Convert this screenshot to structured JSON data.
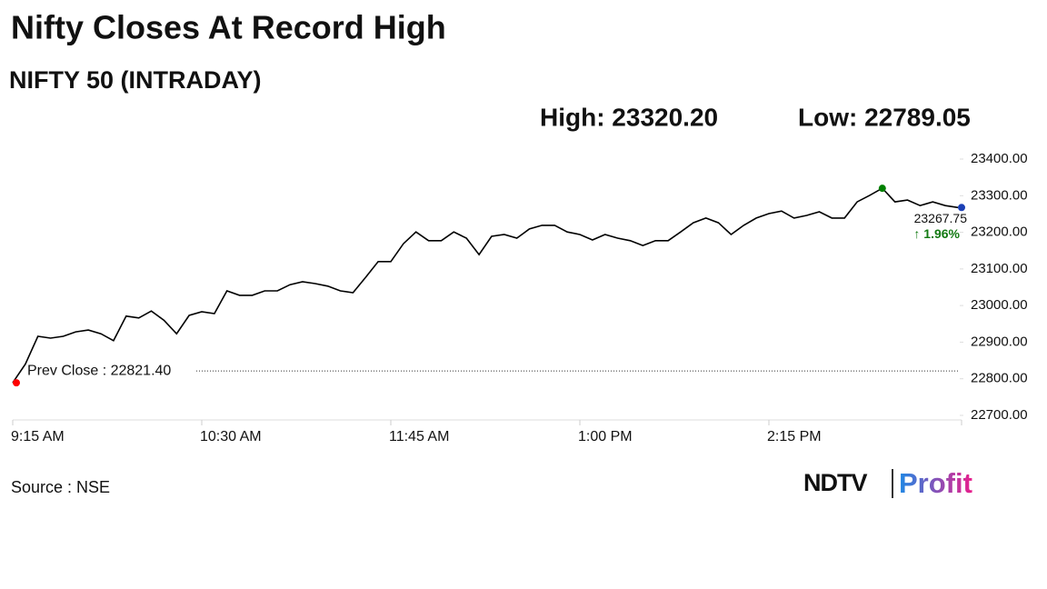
{
  "chart_data": {
    "type": "line",
    "title": "Nifty Closes At Record High",
    "subtitle": "NIFTY 50 (INTRADAY)",
    "high": {
      "value": 23320.2,
      "label": "High: 23320.20"
    },
    "low": {
      "value": 22789.05,
      "label": "Low: 22789.05"
    },
    "prev_close": {
      "value": 22821.4,
      "label": "Prev Close : 22821.40"
    },
    "last": {
      "value": 23267.75,
      "label": "23267.75"
    },
    "change_label": "↑ 1.96%",
    "source": "Source : NSE",
    "logo": {
      "brand": "NDTV",
      "product": "Profit"
    },
    "x": [
      "9:15",
      "9:20",
      "9:25",
      "9:30",
      "9:35",
      "9:40",
      "9:45",
      "9:50",
      "9:55",
      "10:00",
      "10:05",
      "10:10",
      "10:15",
      "10:20",
      "10:25",
      "10:30",
      "10:35",
      "10:40",
      "10:45",
      "10:50",
      "10:55",
      "11:00",
      "11:05",
      "11:10",
      "11:15",
      "11:20",
      "11:25",
      "11:30",
      "11:35",
      "11:40",
      "11:45",
      "11:50",
      "11:55",
      "12:00",
      "12:05",
      "12:10",
      "12:15",
      "12:20",
      "12:25",
      "12:30",
      "12:35",
      "12:40",
      "12:45",
      "12:50",
      "12:55",
      "13:00",
      "13:05",
      "13:10",
      "13:15",
      "13:20",
      "13:25",
      "13:30",
      "13:35",
      "13:40",
      "13:45",
      "13:50",
      "13:55",
      "14:00",
      "14:05",
      "14:10",
      "14:15",
      "14:20",
      "14:25",
      "14:30",
      "14:35",
      "14:40",
      "14:45",
      "14:50",
      "14:55",
      "15:00",
      "15:05",
      "15:10",
      "15:15",
      "15:20",
      "15:25",
      "15:30"
    ],
    "series": [
      {
        "name": "NIFTY 50",
        "color": "#000000",
        "values": [
          22789.05,
          22840,
          22916,
          22911,
          22916,
          22928,
          22933,
          22923,
          22904,
          22971,
          22966,
          22985,
          22960,
          22923,
          22973,
          22983,
          22978,
          23040,
          23028,
          23028,
          23040,
          23040,
          23057,
          23065,
          23060,
          23053,
          23040,
          23035,
          23077,
          23120,
          23120,
          23169,
          23201,
          23177,
          23177,
          23201,
          23184,
          23139,
          23189,
          23194,
          23184,
          23209,
          23219,
          23219,
          23201,
          23194,
          23179,
          23194,
          23184,
          23177,
          23164,
          23177,
          23177,
          23201,
          23226,
          23239,
          23226,
          23194,
          23219,
          23239,
          23251,
          23258,
          23239,
          23246,
          23256,
          23239,
          23239,
          23283,
          23301,
          23320.2,
          23283,
          23288,
          23273,
          23283,
          23273,
          23267.75
        ]
      }
    ],
    "xlim": [
      "9:15",
      "15:30"
    ],
    "xticks": [
      {
        "value": "9:15",
        "label": "9:15 AM"
      },
      {
        "value": "10:30",
        "label": "10:30 AM"
      },
      {
        "value": "11:45",
        "label": "11:45 AM"
      },
      {
        "value": "13:00",
        "label": "1:00 PM"
      },
      {
        "value": "14:15",
        "label": "2:15 PM"
      }
    ],
    "ylim": [
      22700,
      23400
    ],
    "yticks": [
      {
        "value": 22700,
        "label": "22700.00"
      },
      {
        "value": 22800,
        "label": "22800.00"
      },
      {
        "value": 22900,
        "label": "22900.00"
      },
      {
        "value": 23000,
        "label": "23000.00"
      },
      {
        "value": 23100,
        "label": "23100.00"
      },
      {
        "value": 23200,
        "label": "23200.00"
      },
      {
        "value": 23300,
        "label": "23300.00"
      },
      {
        "value": 23400,
        "label": "23400.00"
      }
    ]
  }
}
